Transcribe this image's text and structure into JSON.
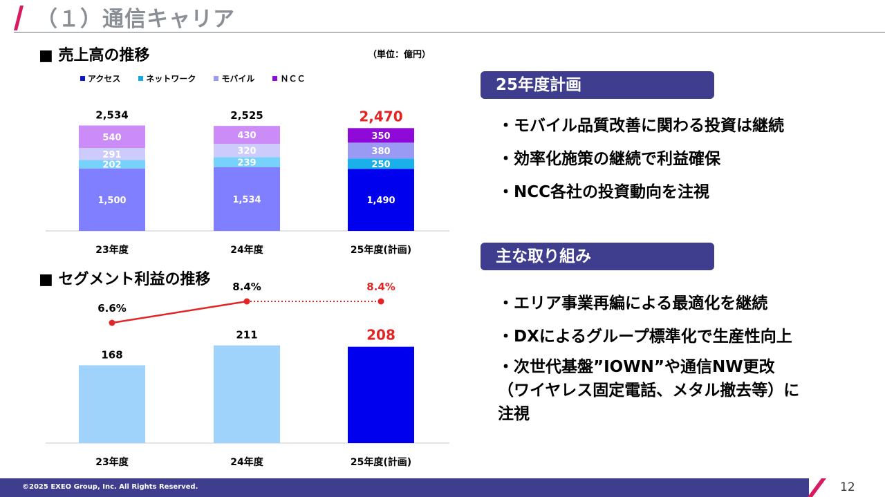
{
  "header": {
    "title": "（１）通信キャリア"
  },
  "revenue": {
    "section_title": "■ 売上高の推移",
    "unit": "（単位：億円）"
  },
  "profit": {
    "section_title": "■ セグメント利益の推移"
  },
  "colors": {
    "access": "#7f7fff",
    "access_plan": "#0000ee",
    "network": "#76d2fb",
    "network_plan": "#1ab0ea",
    "mobile": "#cccbfb",
    "mobile_plan": "#9a9af5",
    "ncc": "#cc8cf8",
    "ncc_plan": "#8f0ad8",
    "profit_bar": "#9fd3fb",
    "profit_bar_plan": "#0000ee",
    "line": "#e32424",
    "plan_text": "#e32424",
    "accent": "#3f3d8e",
    "legend_access": "#0a18c8",
    "legend_network": "#16a5e6",
    "legend_mobile": "#9a9af2",
    "legend_ncc": "#8f0ad8"
  },
  "chart_data": [
    {
      "type": "bar",
      "stacked": true,
      "categories": [
        "23年度",
        "24年度",
        "25年度(計画)"
      ],
      "series": [
        {
          "name": "アクセス",
          "values": [
            1500,
            1534,
            1490
          ]
        },
        {
          "name": "ネットワーク",
          "values": [
            202,
            239,
            250
          ]
        },
        {
          "name": "モバイル",
          "values": [
            291,
            320,
            380
          ]
        },
        {
          "name": "ＮＣＣ",
          "values": [
            540,
            430,
            350
          ]
        }
      ],
      "value_labels": [
        [
          "1,500",
          "1,534",
          "1,490"
        ],
        [
          "202",
          "239",
          "250"
        ],
        [
          "291",
          "320",
          "380"
        ],
        [
          "540",
          "430",
          "350"
        ]
      ],
      "totals": [
        2534,
        2525,
        2470
      ],
      "total_labels": [
        "2,534",
        "2,525",
        "2,470"
      ],
      "legend_placement": "top-left",
      "grid": false
    },
    {
      "type": "bar",
      "categories": [
        "23年度",
        "24年度",
        "25年度(計画)"
      ],
      "values": [
        168,
        211,
        208
      ],
      "value_labels": [
        "168",
        "211",
        "208"
      ],
      "line_series": {
        "values": [
          6.6,
          8.4,
          8.4
        ],
        "labels": [
          "6.6%",
          "8.4%",
          "8.4%"
        ],
        "dotted_segment": [
          1,
          2
        ]
      },
      "grid": false
    }
  ],
  "plan_panel": {
    "title": "25年度計画",
    "bullets": [
      "・モバイル品質改善に関わる投資は継続",
      "・効率化施策の継続で利益確保",
      "・NCC各社の投資動向を注視"
    ]
  },
  "initiatives_panel": {
    "title": "主な取り組み",
    "bullets": [
      "・エリア事業再編による最適化を継続",
      "・DXによるグループ標準化で生産性向上",
      "・次世代基盤”IOWN”や通信NW更改\n（ワイヤレス固定電話、メタル撤去等）に\n注視"
    ]
  },
  "footer": {
    "copyright": "©2025 EXEO Group, Inc. All Rights Reserved.",
    "page_number": "12"
  }
}
